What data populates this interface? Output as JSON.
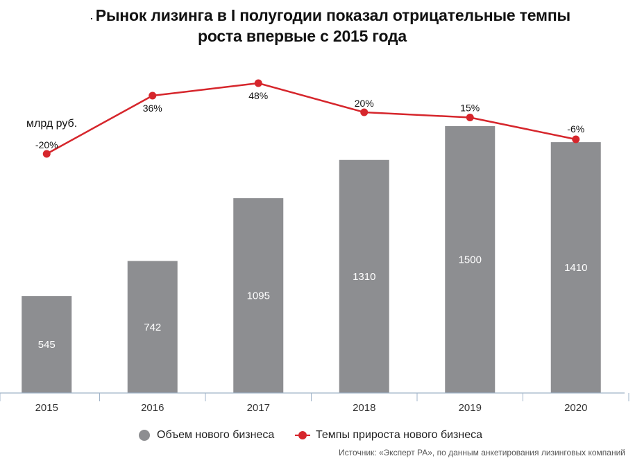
{
  "title_line1": "Рынок лизинга в I полугодии показал отрицательные темпы",
  "title_line2": "роста впервые с 2015 года",
  "title_bullet": ".",
  "unit_label": "млрд руб.",
  "legend": {
    "bar_label": "Объем нового бизнеса",
    "line_label": "Темпы прироста нового бизнеса"
  },
  "source": "Источник: «Эксперт РА», по данным анкетирования лизинговых компаний",
  "colors": {
    "bar": "#8d8e91",
    "line": "#d6262c",
    "axis": "#9fb3c8"
  },
  "chart_data": {
    "type": "bar+line",
    "categories": [
      "2015",
      "2016",
      "2017",
      "2018",
      "2019",
      "2020"
    ],
    "series": [
      {
        "name": "Объем нового бизнеса",
        "type": "bar",
        "values": [
          545,
          742,
          1095,
          1310,
          1500,
          1410
        ],
        "labels": [
          "545",
          "742",
          "1095",
          "1310",
          "1500",
          "1410"
        ]
      },
      {
        "name": "Темпы прироста нового бизнеса",
        "type": "line",
        "values": [
          -20,
          36,
          48,
          20,
          15,
          -6
        ],
        "labels": [
          "-20%",
          "36%",
          "48%",
          "20%",
          "15%",
          "-6%"
        ]
      }
    ],
    "ylabel": "млрд руб.",
    "ylim": [
      0,
      1500
    ],
    "y2lim": [
      -20,
      48
    ],
    "grid": false,
    "legend_position": "bottom"
  }
}
